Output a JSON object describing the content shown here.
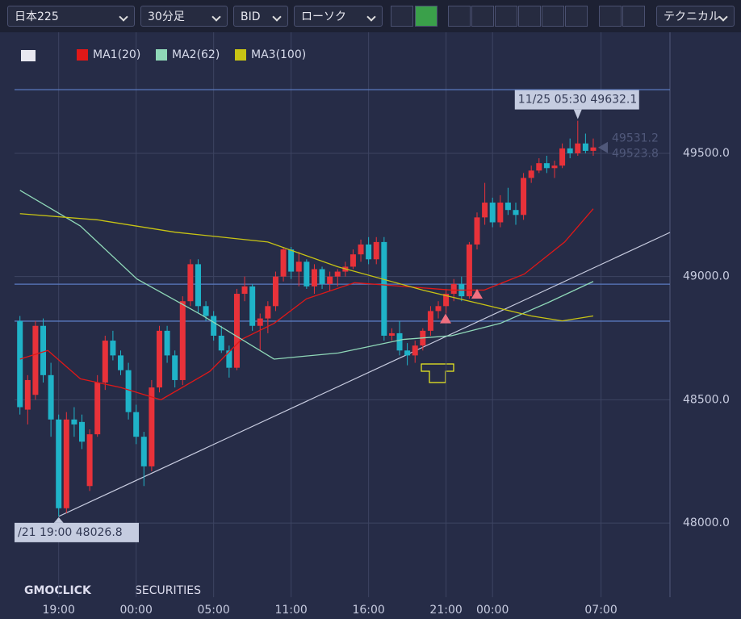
{
  "toolbar": {
    "symbol": "日本225",
    "timeframe": "30分足",
    "price_type": "BID",
    "chart_style": "ローソク",
    "technical": "テクニカル"
  },
  "logo": {
    "brand": "GMOCLICK",
    "sub": "SECURITIES"
  },
  "chart_data": {
    "type": "candlestick",
    "up_color": "#e8323a",
    "down_color": "#1fb3c8",
    "grid": true,
    "xlim": [
      -0.7,
      83.9
    ],
    "ylim": [
      47699,
      49991
    ],
    "xticks": [
      {
        "value": 5,
        "label": "19:00"
      },
      {
        "value": 15,
        "label": "00:00"
      },
      {
        "value": 25,
        "label": "05:00"
      },
      {
        "value": 35,
        "label": "11:00"
      },
      {
        "value": 45,
        "label": "16:00"
      },
      {
        "value": 55,
        "label": "21:00"
      },
      {
        "value": 61,
        "label": "00:00"
      },
      {
        "value": 75,
        "label": "07:00"
      }
    ],
    "yticks": [
      {
        "value": 48000,
        "label": "48000.0"
      },
      {
        "value": 48500,
        "label": "48500.0"
      },
      {
        "value": 49000,
        "label": "49000.0"
      },
      {
        "value": 49500,
        "label": "49500.0"
      }
    ],
    "x": [
      0,
      1,
      2,
      3,
      4,
      5,
      6,
      7,
      8,
      9,
      10,
      11,
      12,
      13,
      14,
      15,
      16,
      17,
      18,
      19,
      20,
      21,
      22,
      23,
      24,
      25,
      26,
      27,
      28,
      29,
      30,
      31,
      32,
      33,
      34,
      35,
      36,
      37,
      38,
      39,
      40,
      41,
      42,
      43,
      44,
      45,
      46,
      47,
      48,
      49,
      50,
      51,
      52,
      53,
      54,
      55,
      56,
      57,
      58,
      59,
      60,
      61,
      62,
      63,
      64,
      65,
      66,
      67,
      68,
      69,
      70,
      71,
      72,
      73,
      74
    ],
    "open": [
      48820,
      48460,
      48520,
      48800,
      48600,
      48420,
      48060,
      48420,
      48410,
      48150,
      48360,
      48570,
      48740,
      48680,
      48620,
      48450,
      48350,
      48230,
      48550,
      48780,
      48680,
      48580,
      48900,
      49050,
      48880,
      48840,
      48760,
      48700,
      48630,
      48930,
      48960,
      48800,
      48830,
      48880,
      49000,
      49110,
      49020,
      49060,
      48960,
      49030,
      48970,
      49000,
      49020,
      49040,
      49090,
      49130,
      49070,
      49140,
      48760,
      48770,
      48700,
      48680,
      48720,
      48780,
      48860,
      48880,
      48930,
      48970,
      48920,
      49130,
      49240,
      49300,
      49220,
      49300,
      49270,
      49250,
      49400,
      49430,
      49460,
      49440,
      49450,
      49520,
      49500,
      49540,
      49510
    ],
    "high": [
      48840,
      48600,
      48820,
      48830,
      48650,
      48440,
      48450,
      48470,
      48440,
      48380,
      48600,
      48760,
      48780,
      48700,
      48650,
      48480,
      48370,
      48580,
      48800,
      48800,
      48700,
      48920,
      49070,
      49070,
      48900,
      48860,
      48800,
      48720,
      48950,
      49000,
      48970,
      48850,
      48900,
      49020,
      49120,
      49120,
      49100,
      49070,
      49050,
      49040,
      49020,
      49030,
      49060,
      49110,
      49150,
      49160,
      49160,
      49160,
      48790,
      48820,
      48730,
      48740,
      48790,
      48880,
      48900,
      48950,
      48990,
      49000,
      49140,
      49260,
      49380,
      49320,
      49330,
      49360,
      49300,
      49420,
      49450,
      49480,
      49490,
      49470,
      49540,
      49560,
      49632.1,
      49580,
      49560
    ],
    "low": [
      48440,
      48400,
      48500,
      48570,
      48350,
      48026.8,
      48040,
      48350,
      48300,
      48130,
      48350,
      48540,
      48660,
      48600,
      48420,
      48320,
      48150,
      48210,
      48530,
      48650,
      48550,
      48560,
      48880,
      48850,
      48820,
      48740,
      48690,
      48590,
      48620,
      48900,
      48780,
      48700,
      48770,
      48860,
      48980,
      48990,
      48960,
      48950,
      48930,
      48950,
      48940,
      48960,
      49000,
      49030,
      49060,
      49050,
      49050,
      48740,
      48740,
      48680,
      48640,
      48650,
      48700,
      48760,
      48830,
      48850,
      48900,
      48900,
      48910,
      49110,
      49210,
      49200,
      49200,
      49250,
      49210,
      49230,
      49380,
      49420,
      49420,
      49400,
      49440,
      49480,
      49490,
      49500,
      49490
    ],
    "close": [
      48470,
      48580,
      48800,
      48600,
      48420,
      48060,
      48420,
      48400,
      48330,
      48360,
      48570,
      48740,
      48680,
      48620,
      48450,
      48350,
      48230,
      48550,
      48780,
      48680,
      48580,
      48900,
      49050,
      48880,
      48840,
      48760,
      48700,
      48630,
      48930,
      48960,
      48800,
      48830,
      48880,
      49000,
      49110,
      49020,
      49060,
      48960,
      49030,
      48970,
      49000,
      49020,
      49040,
      49090,
      49130,
      49070,
      49140,
      48760,
      48770,
      48700,
      48680,
      48720,
      48780,
      48860,
      48880,
      48930,
      48970,
      48920,
      49130,
      49240,
      49300,
      49220,
      49300,
      49270,
      49250,
      49400,
      49430,
      49460,
      49440,
      49450,
      49520,
      49500,
      49540,
      49510,
      49523.8
    ],
    "series": [
      {
        "name": "MA1(20)",
        "color": "#e01818",
        "x": [
          0,
          3.6,
          7.8,
          13,
          18.2,
          24.5,
          28.6,
          32.8,
          37,
          43.2,
          49.5,
          55.7,
          59.9,
          65.1,
          70.3,
          74
        ],
        "values": [
          48665,
          48700,
          48585,
          48550,
          48500,
          48615,
          48745,
          48810,
          48910,
          48975,
          48960,
          48945,
          48945,
          49010,
          49140,
          49275
        ]
      },
      {
        "name": "MA2(62)",
        "color": "#8fd8b8",
        "x": [
          0,
          7.8,
          15.1,
          23.4,
          32.8,
          41.1,
          49.5,
          55.7,
          62,
          68.2,
          74
        ],
        "values": [
          49350,
          49205,
          48990,
          48845,
          48665,
          48690,
          48745,
          48760,
          48810,
          48895,
          48980
        ]
      },
      {
        "name": "MA3(100)",
        "color": "#c8c414",
        "x": [
          0,
          10,
          20,
          32,
          41,
          52,
          60,
          66,
          70,
          74
        ],
        "values": [
          49255,
          49230,
          49180,
          49140,
          49040,
          48945,
          48885,
          48840,
          48820,
          48840
        ]
      }
    ],
    "trendline": {
      "x": [
        5,
        83.9
      ],
      "values": [
        48026.8,
        49179
      ]
    },
    "hlines": [
      49758,
      48969,
      48819
    ],
    "annotations": [
      {
        "x": 72,
        "value": 49632.1,
        "label": "11/25 05:30 49632.1"
      },
      {
        "x": 5,
        "value": 48026.8,
        "label": "/21 19:00 48026.8"
      }
    ],
    "last_prices": [
      {
        "value": 49531.2,
        "label": "49531.2"
      },
      {
        "value": 49523.8,
        "label": "49523.8"
      }
    ]
  }
}
